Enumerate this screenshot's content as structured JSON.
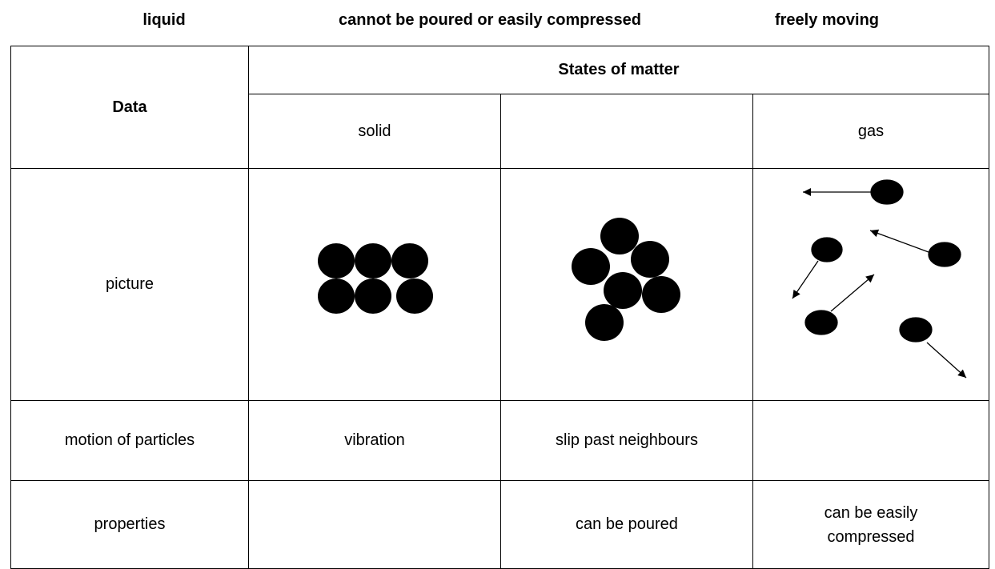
{
  "word_bank": [
    "liquid",
    "cannot be poured or easily compressed",
    "freely moving"
  ],
  "table": {
    "corner": "Data",
    "group_header": "States of matter",
    "columns": [
      "solid",
      null,
      "gas"
    ],
    "rows": [
      {
        "label": "picture"
      },
      {
        "label": "motion of particles",
        "cells": [
          "vibration",
          "slip past neighbours",
          null
        ]
      },
      {
        "label": "properties",
        "cells": [
          null,
          "can be poured",
          "can be easily compressed"
        ]
      }
    ]
  }
}
